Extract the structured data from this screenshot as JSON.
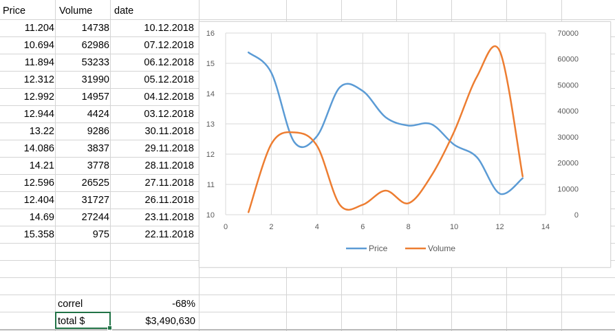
{
  "headers": {
    "price": "Price",
    "volume": "Volume",
    "date": "date"
  },
  "rows": [
    {
      "price": "11.204",
      "volume": "14738",
      "date": "10.12.2018"
    },
    {
      "price": "10.694",
      "volume": "62986",
      "date": "07.12.2018"
    },
    {
      "price": "11.894",
      "volume": "53233",
      "date": "06.12.2018"
    },
    {
      "price": "12.312",
      "volume": "31990",
      "date": "05.12.2018"
    },
    {
      "price": "12.992",
      "volume": "14957",
      "date": "04.12.2018"
    },
    {
      "price": "12.944",
      "volume": "4424",
      "date": "03.12.2018"
    },
    {
      "price": "13.22",
      "volume": "9286",
      "date": "30.11.2018"
    },
    {
      "price": "14.086",
      "volume": "3837",
      "date": "29.11.2018"
    },
    {
      "price": "14.21",
      "volume": "3778",
      "date": "28.11.2018"
    },
    {
      "price": "12.596",
      "volume": "26525",
      "date": "27.11.2018"
    },
    {
      "price": "12.404",
      "volume": "31727",
      "date": "26.11.2018"
    },
    {
      "price": "14.69",
      "volume": "27244",
      "date": "23.11.2018"
    },
    {
      "price": "15.358",
      "volume": "975",
      "date": "22.11.2018"
    }
  ],
  "summary": {
    "correl_label": "correl",
    "correl_value": "-68%",
    "total_label": "total $",
    "total_value": "$3,490,630"
  },
  "colors": {
    "price": "#5b9bd5",
    "volume": "#ed7d31",
    "selection": "#217346"
  },
  "chart_data": {
    "type": "scatter",
    "smooth": true,
    "x": [
      1,
      2,
      3,
      4,
      5,
      6,
      7,
      8,
      9,
      10,
      11,
      12,
      13
    ],
    "series": [
      {
        "name": "Price",
        "axis": "left",
        "values": [
          15.358,
          14.69,
          12.404,
          12.596,
          14.21,
          14.086,
          13.22,
          12.944,
          12.992,
          12.312,
          11.894,
          10.694,
          11.204
        ]
      },
      {
        "name": "Volume",
        "axis": "right",
        "values": [
          975,
          27244,
          31727,
          26525,
          3778,
          3837,
          9286,
          4424,
          14957,
          31990,
          53233,
          62986,
          14738
        ]
      }
    ],
    "xlim": [
      0,
      14
    ],
    "xticks": [
      "0",
      "2",
      "4",
      "6",
      "8",
      "10",
      "12",
      "14"
    ],
    "ylim_left": [
      10,
      16
    ],
    "yticks_left": [
      "10",
      "11",
      "12",
      "13",
      "14",
      "15",
      "16"
    ],
    "ylim_right": [
      0,
      70000
    ],
    "yticks_right": [
      "0",
      "10000",
      "20000",
      "30000",
      "40000",
      "50000",
      "60000",
      "70000"
    ],
    "legend_position": "bottom",
    "grid": true
  }
}
